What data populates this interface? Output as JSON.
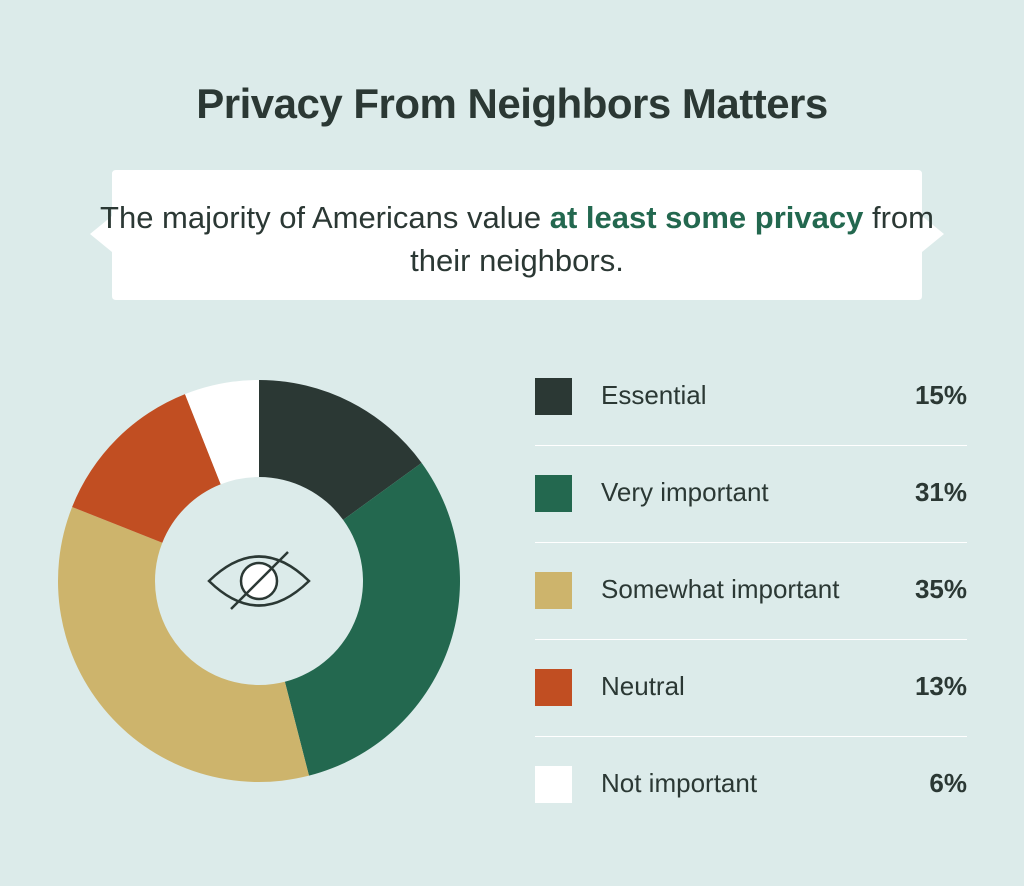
{
  "title": "Privacy From Neighbors Matters",
  "callout": {
    "text_before": "The majority of Americans value ",
    "text_bold": "at least some privacy",
    "text_after": " from their neighbors."
  },
  "center_icon": "eye-slash-icon",
  "chart_data": {
    "type": "pie",
    "variant": "donut",
    "title": "Privacy From Neighbors Matters",
    "legend_position": "right",
    "series": [
      {
        "name": "Essential",
        "value": 15,
        "label": "15%",
        "color": "#2b3834"
      },
      {
        "name": "Very important",
        "value": 31,
        "label": "31%",
        "color": "#23684f"
      },
      {
        "name": "Somewhat important",
        "value": 35,
        "label": "35%",
        "color": "#cdb46c"
      },
      {
        "name": "Neutral",
        "value": 13,
        "label": "13%",
        "color": "#c14e22"
      },
      {
        "name": "Not important",
        "value": 6,
        "label": "6%",
        "color": "#ffffff"
      }
    ]
  }
}
